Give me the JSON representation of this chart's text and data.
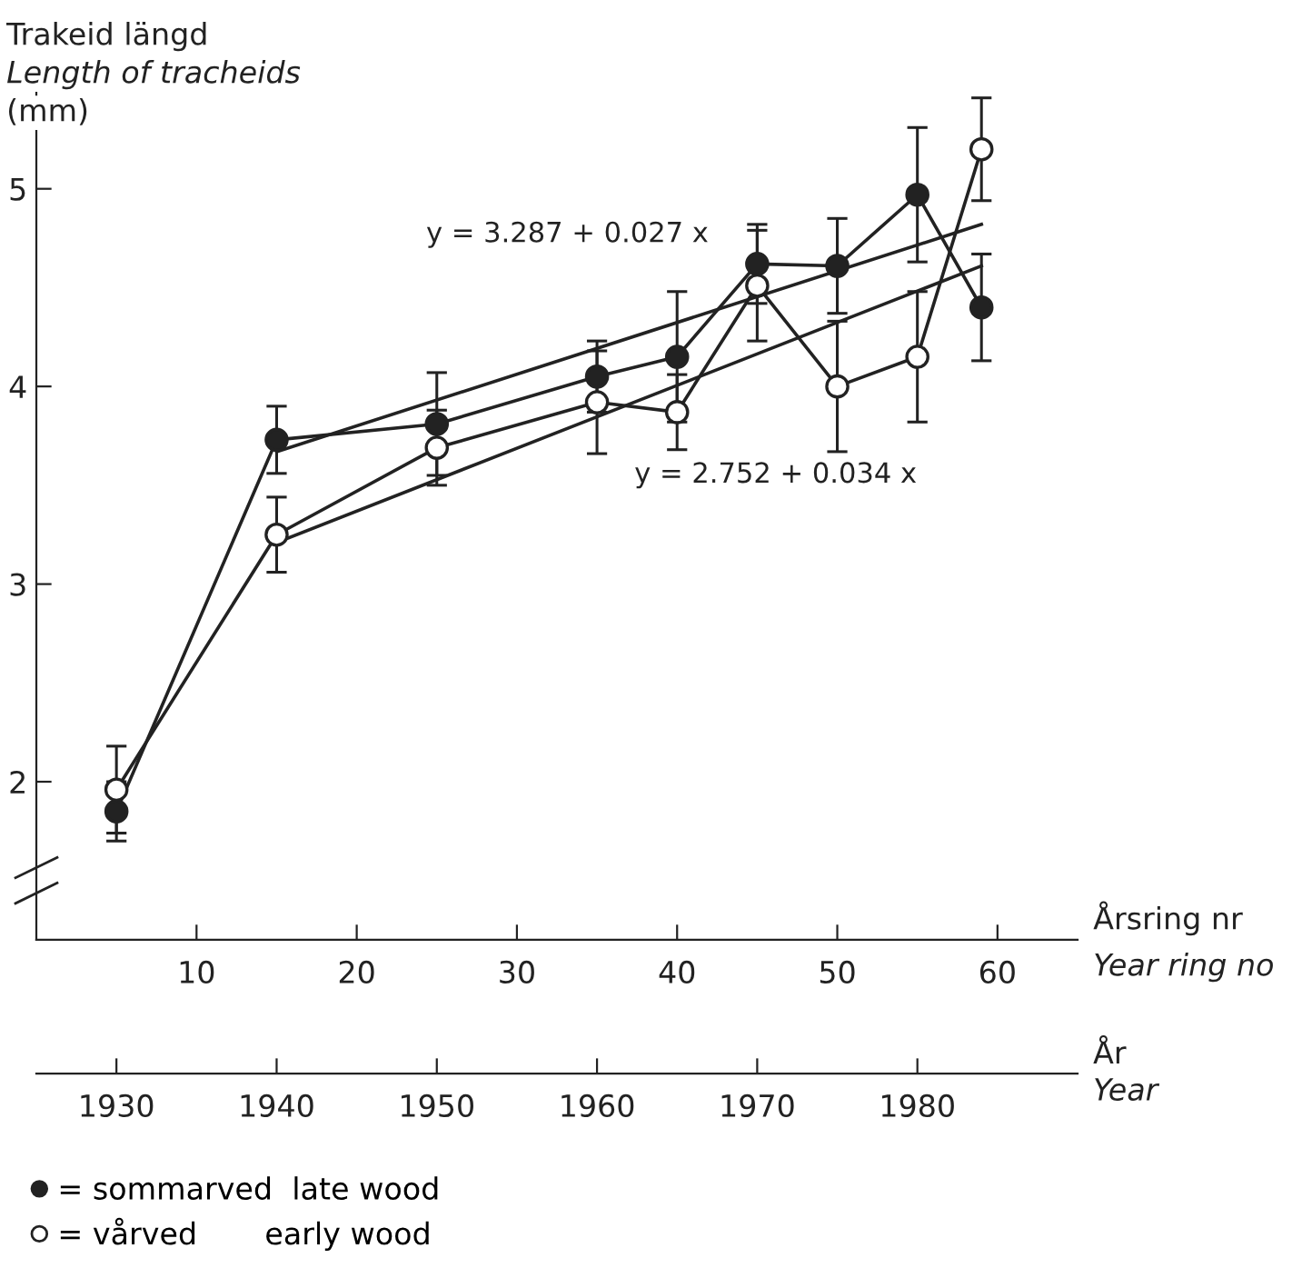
{
  "chart_data": {
    "type": "line",
    "ylabel": "Trakeid längd\nLength of tracheids\n(mm)",
    "xlabel": "Årsring nr\nYear ring no",
    "x2label": "År\nYear",
    "xlim": [
      0,
      65
    ],
    "xticks": [
      10,
      20,
      30,
      40,
      50,
      60
    ],
    "x2lim": [
      1925,
      1990
    ],
    "x2ticks": [
      1930,
      1940,
      1950,
      1960,
      1970,
      1980
    ],
    "ylim": [
      1.2,
      5.5
    ],
    "yticks": [
      2,
      3,
      4,
      5
    ],
    "grid": false,
    "legend": "bottom left",
    "marker": "circle",
    "line_style": "solid",
    "series": [
      {
        "name": "= sommarved  late wood",
        "color": "#222222",
        "x": [
          5,
          15,
          25,
          35,
          40,
          45,
          50,
          55,
          59
        ],
        "values": [
          1.85,
          3.73,
          3.81,
          4.05,
          4.15,
          4.62,
          4.61,
          4.97,
          4.4
        ],
        "errors": [
          0.15,
          0.17,
          0.26,
          0.18,
          0.33,
          0.2,
          0.24,
          0.34,
          0.27
        ]
      },
      {
        "name": "= vårved       early wood",
        "color": "#222222",
        "colors": [
          "#ffffff",
          "#ffffff",
          "#ffffff",
          "#ffffff",
          "#ffffff",
          "#ffffff",
          "#ffffff",
          "#ffffff",
          "#ffffff"
        ],
        "x": [
          5,
          15,
          25,
          35,
          40,
          45,
          50,
          55,
          59
        ],
        "values": [
          1.96,
          3.25,
          3.69,
          3.92,
          3.87,
          4.51,
          4.0,
          4.15,
          5.2
        ],
        "errors": [
          0.22,
          0.19,
          0.19,
          0.26,
          0.19,
          0.28,
          0.33,
          0.33,
          0.26
        ]
      },
      {
        "type": "line",
        "marker": "none",
        "color": "#222222",
        "x": [
          15,
          59
        ],
        "values": [
          3.67,
          4.82
        ]
      },
      {
        "type": "line",
        "marker": "none",
        "color": "#222222",
        "x": [
          15,
          59
        ],
        "values": [
          3.21,
          4.61
        ]
      }
    ],
    "annotations": [
      "y = 3.287 + 0.027 x",
      "y = 2.752 + 0.034 x"
    ]
  }
}
